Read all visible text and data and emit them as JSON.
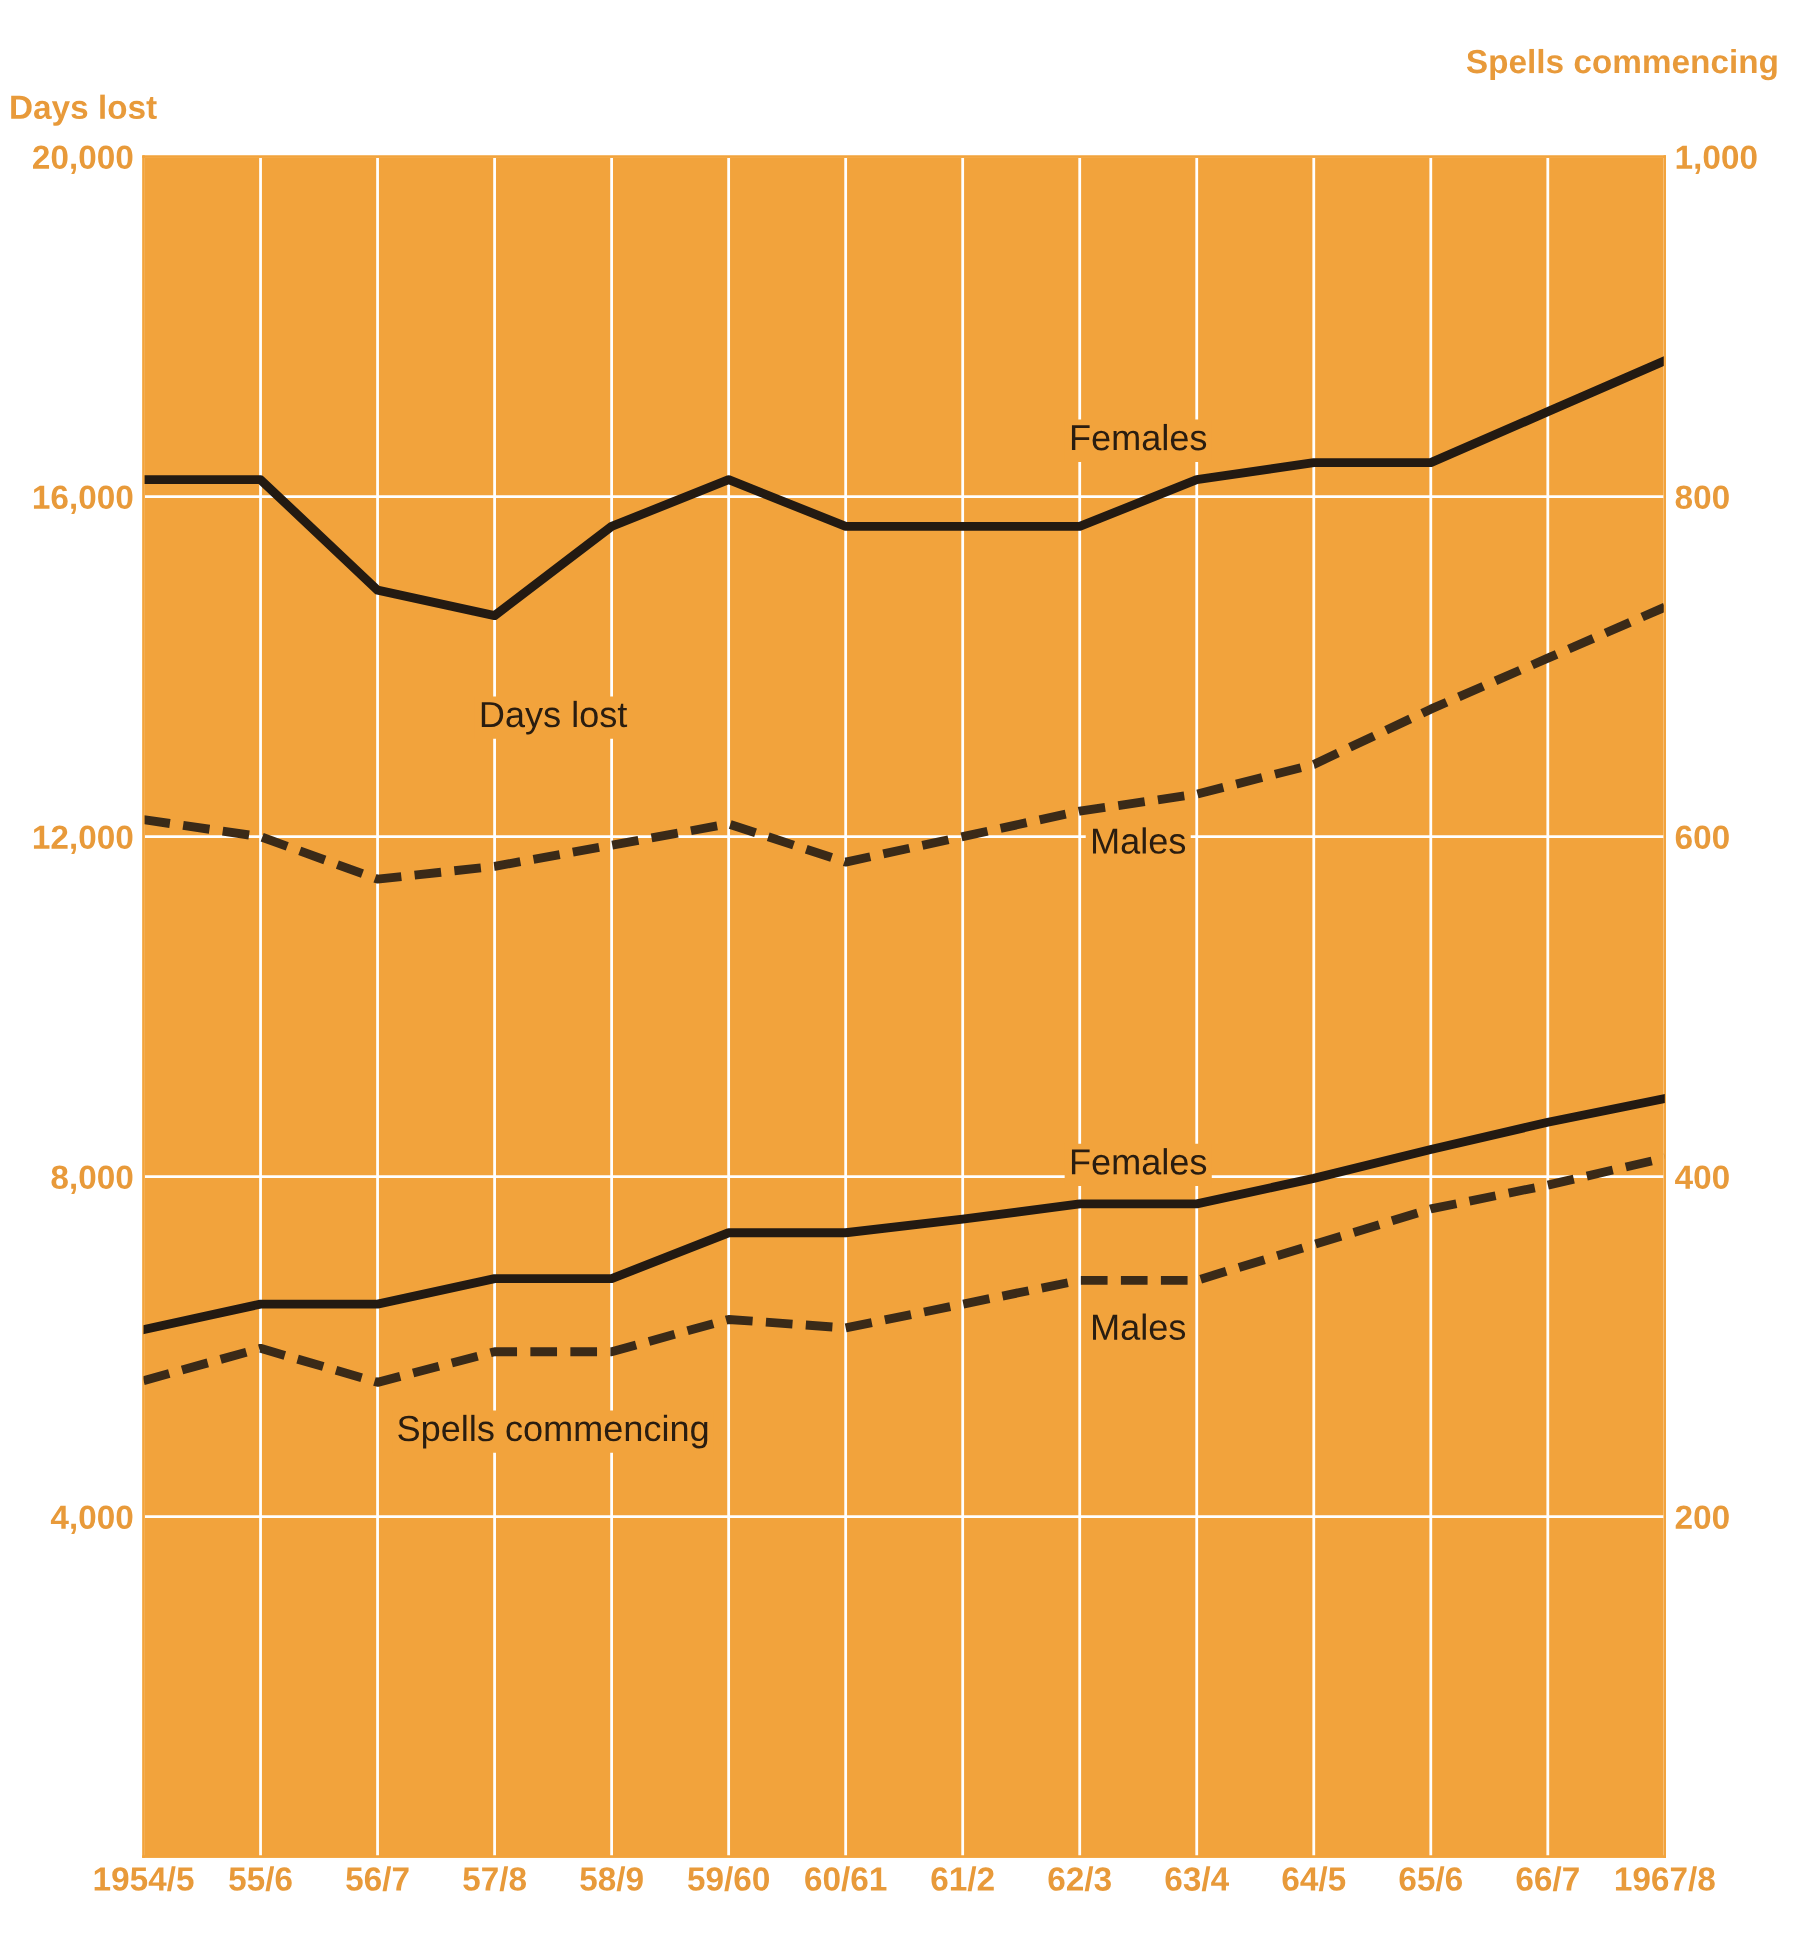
{
  "chart_data": {
    "type": "line",
    "xlabel": null,
    "ylabel": "Days lost",
    "y2label": "Spells commencing",
    "categories": [
      "1954/5",
      "55/6",
      "56/7",
      "57/8",
      "58/9",
      "59/60",
      "60/61",
      "61/2",
      "62/3",
      "63/4",
      "64/5",
      "65/6",
      "66/7",
      "1967/8"
    ],
    "series": [
      {
        "name": "Females",
        "color": "#231a12",
        "line_style": "solid",
        "values": [
          16200,
          16200,
          14900,
          14600,
          15650,
          16200,
          15650,
          15650,
          15650,
          16200,
          16400,
          16400,
          17000,
          17600
        ]
      },
      {
        "name": "Males",
        "color": "#3a2a18",
        "line_style": "dashed",
        "values": [
          12200,
          12000,
          11500,
          11650,
          11900,
          12150,
          11700,
          12000,
          12300,
          12500,
          12850,
          13500,
          14100,
          14700
        ]
      },
      {
        "name": "Females",
        "color": "#231a12",
        "line_style": "solid",
        "axis": "y2",
        "values": [
          310,
          325,
          325,
          340,
          340,
          367,
          367,
          375,
          384,
          384,
          399,
          416,
          432,
          446
        ]
      },
      {
        "name": "Males",
        "color": "#3a2a18",
        "line_style": "dashed",
        "axis": "y2",
        "values": [
          280,
          299,
          279,
          297,
          297,
          316,
          311,
          325,
          339,
          339,
          360,
          381,
          395,
          411
        ]
      }
    ],
    "annotations": [
      "Days lost",
      "Spells commencing"
    ],
    "ylim": [
      0,
      20000
    ],
    "yticks": [
      {
        "value": 4000,
        "label": "4,000"
      },
      {
        "value": 8000,
        "label": "8,000"
      },
      {
        "value": 12000,
        "label": "12,000"
      },
      {
        "value": 16000,
        "label": "16,000"
      },
      {
        "value": 20000,
        "label": "20,000"
      }
    ],
    "y2lim": [
      0,
      1000
    ],
    "y2ticks": [
      {
        "value": 200,
        "label": "200"
      },
      {
        "value": 400,
        "label": "400"
      },
      {
        "value": 600,
        "label": "600"
      },
      {
        "value": 800,
        "label": "800"
      },
      {
        "value": 1000,
        "label": "1,000"
      }
    ],
    "grid": true,
    "legend": false,
    "marker": "none"
  }
}
